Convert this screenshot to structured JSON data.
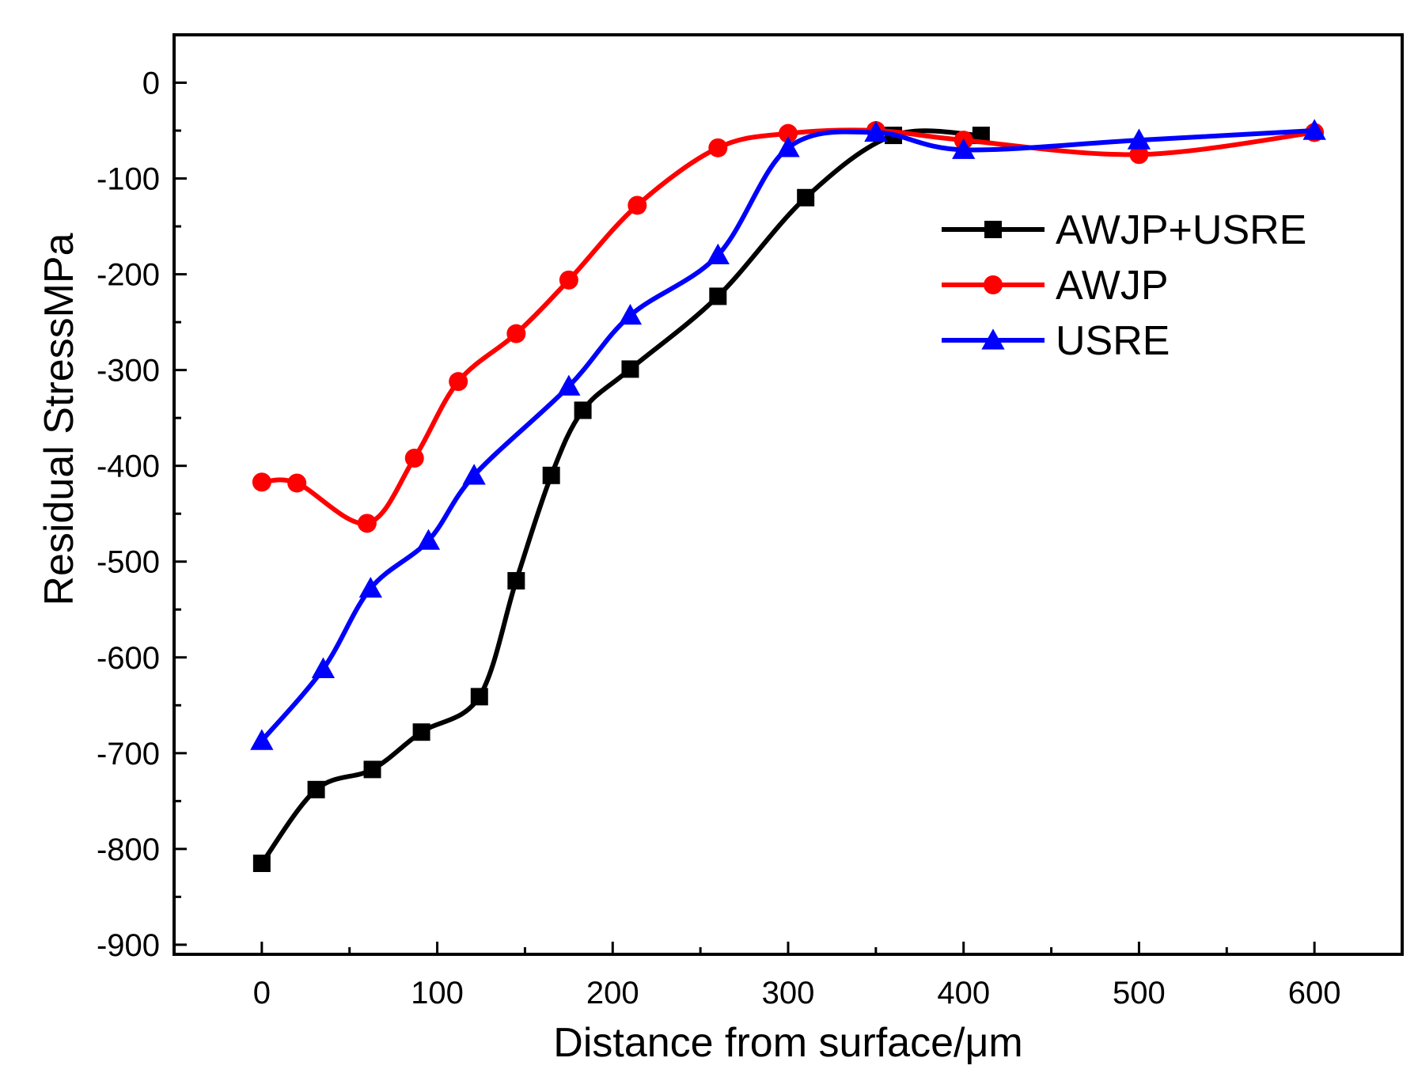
{
  "chart_data": {
    "type": "line",
    "title": "",
    "xlabel": "Distance from surface/μm",
    "ylabel": "Residual StressMPa",
    "xlim": [
      -50,
      650
    ],
    "ylim": [
      -910,
      50
    ],
    "xticks": [
      0,
      100,
      200,
      300,
      400,
      500,
      600
    ],
    "yticks": [
      0,
      -100,
      -200,
      -300,
      -400,
      -500,
      -600,
      -700,
      -800,
      -900
    ],
    "legend_position": "upper-right",
    "grid": false,
    "series": [
      {
        "name": "AWJP+USRE",
        "color": "#000000",
        "marker": "square",
        "x": [
          0,
          31,
          63,
          91,
          124,
          145,
          165,
          183,
          210,
          260,
          310,
          360,
          410
        ],
        "y": [
          -815,
          -738,
          -717,
          -678,
          -641,
          -520,
          -410,
          -342,
          -299,
          -223,
          -120,
          -55,
          -55
        ]
      },
      {
        "name": "AWJP",
        "color": "#ff0000",
        "marker": "circle",
        "x": [
          0,
          20,
          60,
          87,
          112,
          145,
          175,
          214,
          260,
          300,
          350,
          400,
          500,
          600
        ],
        "y": [
          -417,
          -418,
          -460,
          -392,
          -312,
          -262,
          -206,
          -128,
          -68,
          -53,
          -50,
          -60,
          -75,
          -52
        ]
      },
      {
        "name": "USRE",
        "color": "#0000ff",
        "marker": "triangle",
        "x": [
          0,
          35,
          62,
          95,
          121,
          175,
          210,
          260,
          300,
          350,
          400,
          500,
          600
        ],
        "y": [
          -687,
          -612,
          -528,
          -478,
          -410,
          -317,
          -243,
          -180,
          -68,
          -52,
          -70,
          -60,
          -50
        ]
      }
    ]
  }
}
